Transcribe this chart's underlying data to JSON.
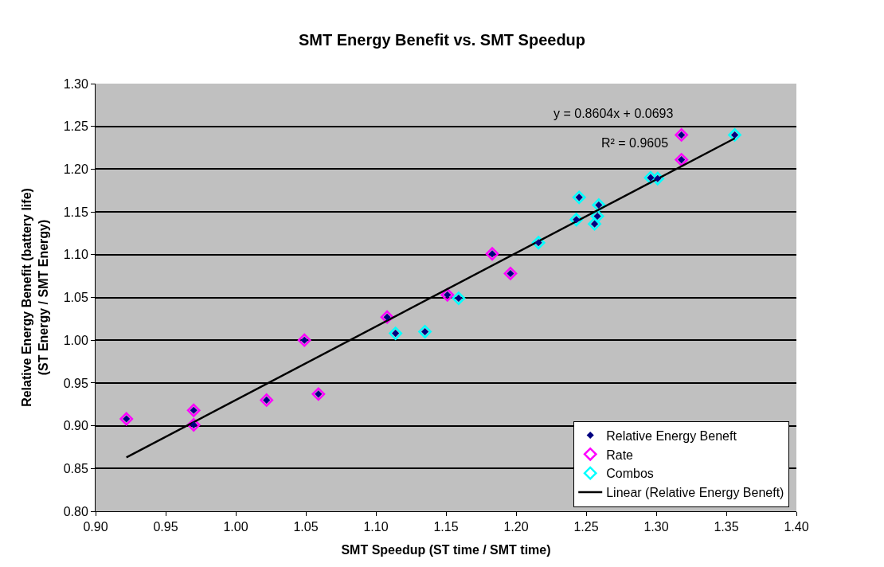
{
  "chart_data": {
    "type": "scatter",
    "title": "SMT Energy Benefit vs. SMT Speedup",
    "xlabel": "SMT Speedup (ST time / SMT time)",
    "ylabel": "Relative Energy Benefit (battery life)\n(ST Energy / SMT Energy)",
    "series": [
      {
        "name": "Relative Energy Beneft",
        "color": "#000080",
        "marker": "diamond",
        "x": [
          0.922,
          0.97,
          0.97,
          1.022,
          1.049,
          1.059,
          1.108,
          1.151,
          1.183,
          1.196,
          1.318,
          1.318,
          1.114,
          1.135,
          1.159,
          1.216,
          1.243,
          1.245,
          1.259,
          1.258,
          1.256,
          1.296,
          1.301,
          1.356
        ],
        "values": [
          0.908,
          0.918,
          0.901,
          0.93,
          1.0,
          0.937,
          1.027,
          1.053,
          1.101,
          1.078,
          1.24,
          1.211,
          1.008,
          1.01,
          1.049,
          1.114,
          1.141,
          1.167,
          1.158,
          1.145,
          1.136,
          1.19,
          1.189,
          1.24
        ]
      },
      {
        "name": "Rate",
        "color": "#ff00ff",
        "marker": "diamond",
        "x": [
          0.922,
          0.97,
          0.97,
          1.022,
          1.049,
          1.059,
          1.108,
          1.151,
          1.183,
          1.196,
          1.318,
          1.318
        ],
        "values": [
          0.908,
          0.918,
          0.901,
          0.93,
          1.0,
          0.937,
          1.027,
          1.053,
          1.101,
          1.078,
          1.24,
          1.211
        ]
      },
      {
        "name": "Combos",
        "color": "#00ffff",
        "marker": "diamond",
        "x": [
          1.114,
          1.135,
          1.159,
          1.216,
          1.243,
          1.245,
          1.259,
          1.258,
          1.256,
          1.296,
          1.301,
          1.356
        ],
        "values": [
          1.008,
          1.01,
          1.049,
          1.114,
          1.141,
          1.167,
          1.158,
          1.145,
          1.136,
          1.19,
          1.189,
          1.24
        ]
      },
      {
        "name": "Linear (Relative Energy Beneft)",
        "type": "line",
        "color": "#000000",
        "line_style": "solid",
        "x": [
          0.922,
          1.356
        ],
        "values": [
          0.863,
          1.236
        ]
      }
    ],
    "annotations": [
      "y = 0.8604x + 0.0693",
      "R² = 0.9605"
    ],
    "xlim": [
      0.9,
      1.4
    ],
    "xticks": [
      {
        "value": 0.9,
        "label": "0.90"
      },
      {
        "value": 0.95,
        "label": "0.95"
      },
      {
        "value": 1.0,
        "label": "1.00"
      },
      {
        "value": 1.05,
        "label": "1.05"
      },
      {
        "value": 1.1,
        "label": "1.10"
      },
      {
        "value": 1.15,
        "label": "1.15"
      },
      {
        "value": 1.2,
        "label": "1.20"
      },
      {
        "value": 1.25,
        "label": "1.25"
      },
      {
        "value": 1.3,
        "label": "1.30"
      },
      {
        "value": 1.35,
        "label": "1.35"
      },
      {
        "value": 1.4,
        "label": "1.40"
      }
    ],
    "ylim": [
      0.8,
      1.3
    ],
    "yticks": [
      {
        "value": 0.8,
        "label": "0.80"
      },
      {
        "value": 0.85,
        "label": "0.85"
      },
      {
        "value": 0.9,
        "label": "0.90"
      },
      {
        "value": 0.95,
        "label": "0.95"
      },
      {
        "value": 1.0,
        "label": "1.00"
      },
      {
        "value": 1.05,
        "label": "1.05"
      },
      {
        "value": 1.1,
        "label": "1.10"
      },
      {
        "value": 1.15,
        "label": "1.15"
      },
      {
        "value": 1.2,
        "label": "1.20"
      },
      {
        "value": 1.25,
        "label": "1.25"
      },
      {
        "value": 1.3,
        "label": "1.30"
      }
    ],
    "grid": "y",
    "legend": "bottom right"
  }
}
